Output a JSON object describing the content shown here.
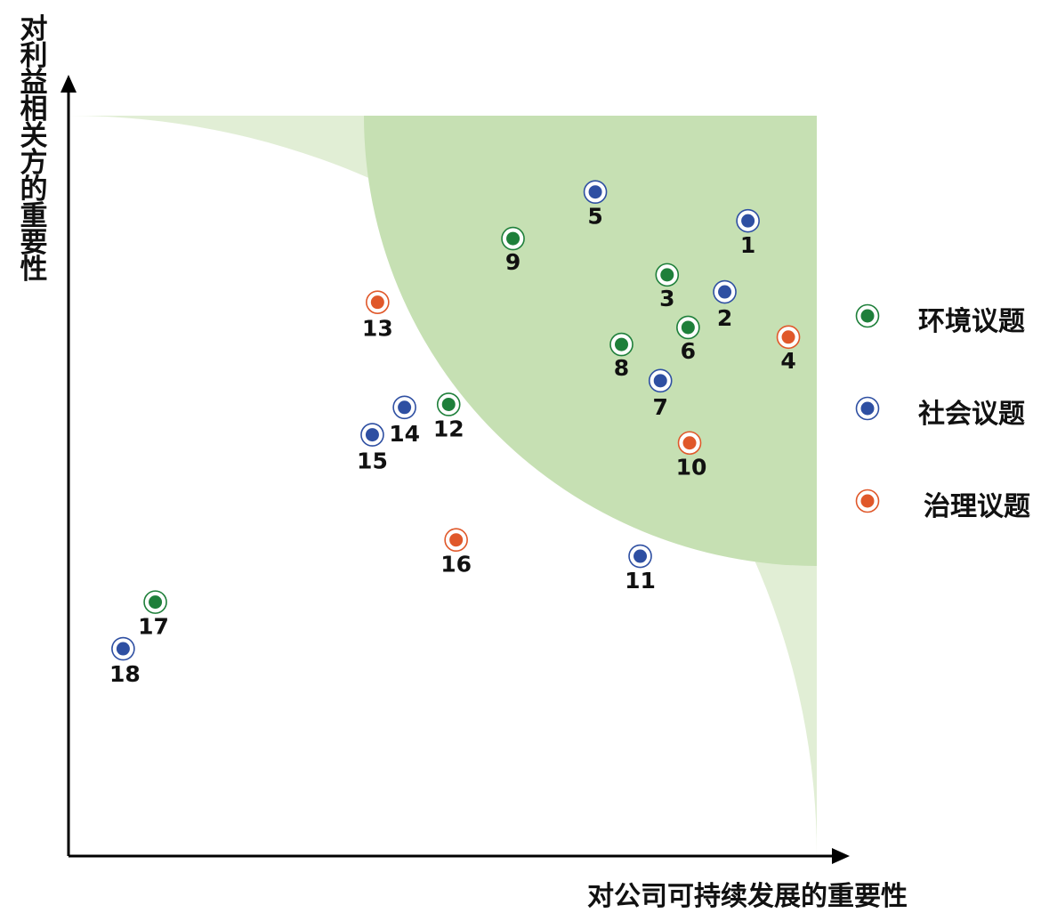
{
  "chart_data": {
    "type": "scatter",
    "xlabel": "对公司可持续发展的重要性",
    "ylabel": "对利益相关方的重要性",
    "xlim": [
      0,
      100
    ],
    "ylim": [
      0,
      100
    ],
    "grid": false,
    "legend_position": "right",
    "series": [
      {
        "name": "环境议题",
        "color": "#1e7f3a",
        "points": [
          {
            "label": "3",
            "x": 80.0,
            "y": 78.5
          },
          {
            "label": "6",
            "x": 82.8,
            "y": 71.4
          },
          {
            "label": "8",
            "x": 73.9,
            "y": 69.1
          },
          {
            "label": "9",
            "x": 59.4,
            "y": 83.4
          },
          {
            "label": "12",
            "x": 50.8,
            "y": 61.0
          },
          {
            "label": "17",
            "x": 11.6,
            "y": 34.3
          }
        ]
      },
      {
        "name": "社会议题",
        "color": "#2e4fa2",
        "points": [
          {
            "label": "1",
            "x": 90.8,
            "y": 85.8
          },
          {
            "label": "2",
            "x": 87.7,
            "y": 76.2
          },
          {
            "label": "5",
            "x": 70.4,
            "y": 89.7
          },
          {
            "label": "7",
            "x": 79.1,
            "y": 64.2
          },
          {
            "label": "11",
            "x": 76.4,
            "y": 40.5
          },
          {
            "label": "14",
            "x": 44.9,
            "y": 60.6
          },
          {
            "label": "15",
            "x": 40.6,
            "y": 56.9
          },
          {
            "label": "18",
            "x": 7.3,
            "y": 28.0
          }
        ]
      },
      {
        "name": "治理议题",
        "color": "#e0582a",
        "points": [
          {
            "label": "4",
            "x": 96.2,
            "y": 70.1
          },
          {
            "label": "10",
            "x": 83.0,
            "y": 55.8
          },
          {
            "label": "13",
            "x": 41.3,
            "y": 74.8
          },
          {
            "label": "16",
            "x": 51.8,
            "y": 42.7
          }
        ]
      }
    ],
    "zones": [
      {
        "name": "outer",
        "color": "#e1eed5",
        "radius_fraction": 1.0
      },
      {
        "name": "inner",
        "color": "#c6e0b3",
        "radius_fraction": 0.6
      }
    ]
  }
}
